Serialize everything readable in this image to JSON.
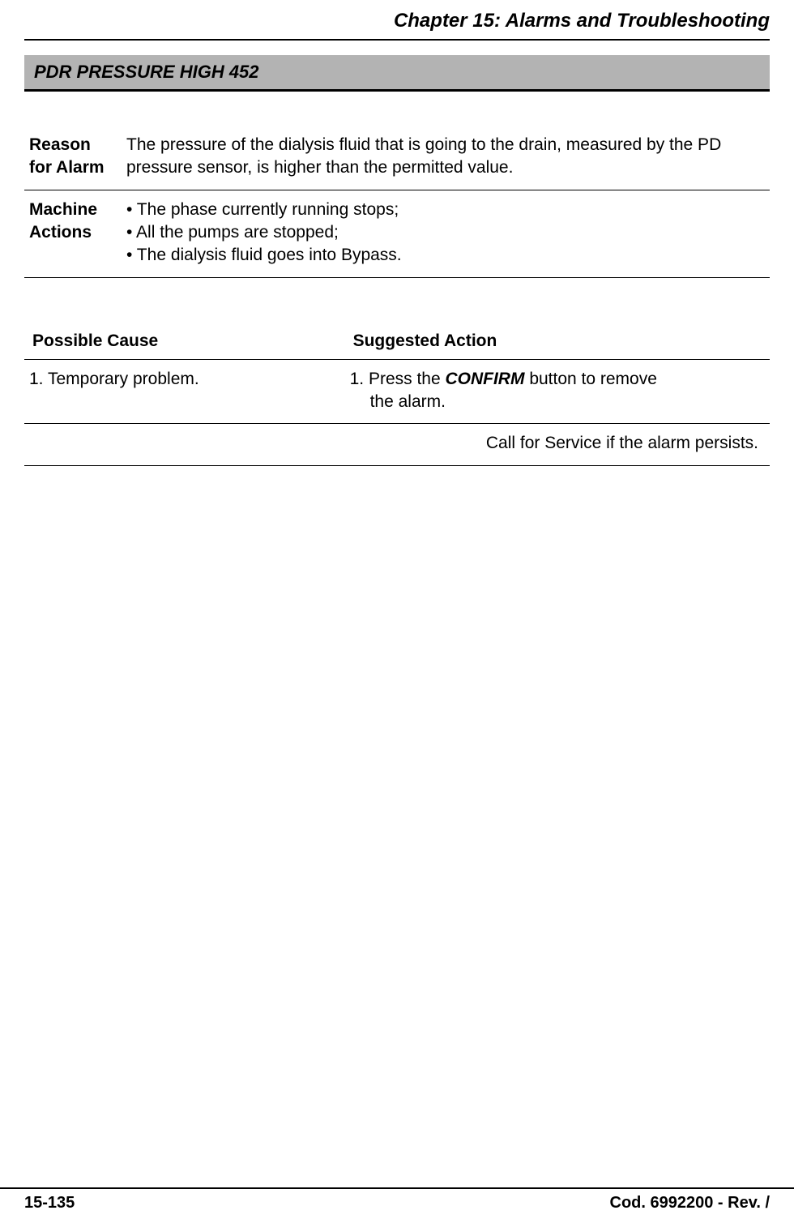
{
  "header": {
    "chapter_title": "Chapter 15: Alarms and Troubleshooting"
  },
  "alarm": {
    "title": "PDR PRESSURE HIGH 452"
  },
  "info": {
    "reason_label": "Reason for Alarm",
    "reason_text": "The pressure of the dialysis fluid that is going to the drain, measured by the PD pressure sensor, is higher than the permitted value.",
    "machine_label": "Machine Actions",
    "machine_line1": "• The phase currently running stops;",
    "machine_line2": "• All the pumps are stopped;",
    "machine_line3": "• The dialysis fluid goes into Bypass."
  },
  "cause_action": {
    "cause_header": "Possible Cause",
    "action_header": "Suggested Action",
    "cause_1": "1. Temporary problem.",
    "action_1_prefix": "1. Press the ",
    "action_1_bold": "CONFIRM",
    "action_1_suffix": " button to remove",
    "action_1_line2": "the alarm.",
    "persist": "Call for Service if the alarm persists."
  },
  "footer": {
    "page_number": "15-135",
    "doc_code": "Cod. 6992200 - Rev. /"
  }
}
